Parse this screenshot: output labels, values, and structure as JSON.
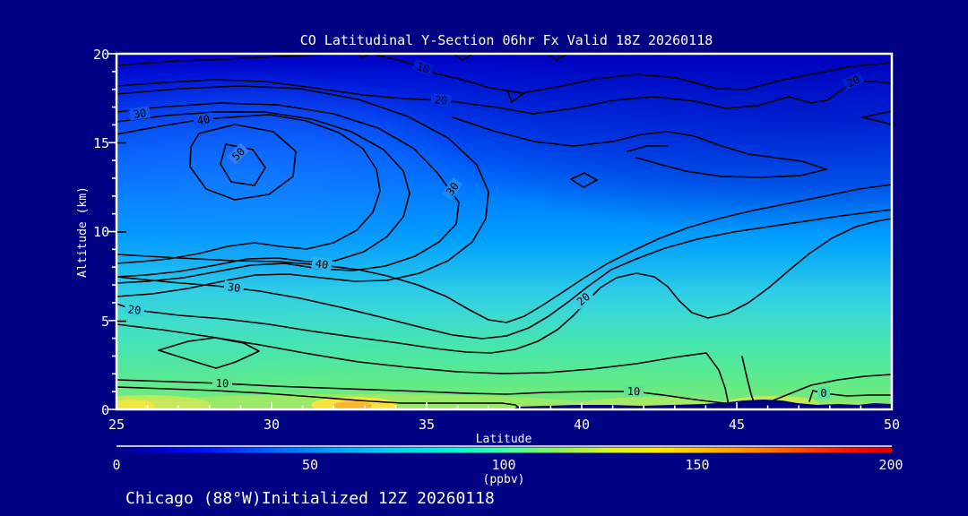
{
  "header": {
    "title": "CO Latitudinal Y-Section 06hr  Fx Valid 18Z 20260118"
  },
  "footer": {
    "caption": "Chicago (88°W)Initialized 12Z 20260118"
  },
  "colors": {
    "background": "#000082",
    "frame": "#ffffff",
    "contour_line": "#000000",
    "text": "#fdfdec",
    "field_top_blue": "#0000c4",
    "field_bottom_green": "#7de878",
    "surface_yellow": "#ffe23c",
    "surface_orange": "#ffb02e"
  },
  "chart_data": {
    "type": "heatmap",
    "subtype": "filled-contour latitude-height cross section with overlaid line contours",
    "title": "CO Latitudinal Y-Section 06hr  Fx Valid 18Z 20260118",
    "xlabel": "Latitude",
    "ylabel": "Altitude (km)",
    "x_range": [
      25,
      50
    ],
    "y_range_km": [
      0,
      20
    ],
    "x_ticks": [
      "25",
      "30",
      "35",
      "40",
      "45",
      "50"
    ],
    "y_ticks": [
      "20",
      "15",
      "10",
      "5",
      "0"
    ],
    "grid": false,
    "fill_field_ppbv": {
      "comment": "CO colour fill, estimated from colorbar at lat/alt grid",
      "lats": [
        25,
        30,
        35,
        40,
        45,
        50
      ],
      "alts_km": [
        20,
        15,
        10,
        5,
        0
      ],
      "values": [
        [
          25,
          22,
          15,
          10,
          8,
          8
        ],
        [
          45,
          40,
          30,
          18,
          15,
          12
        ],
        [
          55,
          58,
          48,
          35,
          30,
          28
        ],
        [
          70,
          72,
          65,
          60,
          62,
          58
        ],
        [
          88,
          108,
          92,
          85,
          95,
          78
        ]
      ]
    },
    "contour_line_levels_labeled": [
      0,
      10,
      20,
      30,
      40,
      50
    ],
    "contour_labels": [
      {
        "text": "10",
        "lat": 34.9,
        "alt_km": 19.2
      },
      {
        "text": "20",
        "lat": 35.5,
        "alt_km": 17.4
      },
      {
        "text": "20",
        "lat": 48.8,
        "alt_km": 18.4
      },
      {
        "text": "30",
        "lat": 25.8,
        "alt_km": 16.6
      },
      {
        "text": "40",
        "lat": 27.8,
        "alt_km": 16.3
      },
      {
        "text": "50",
        "lat": 29.0,
        "alt_km": 14.3
      },
      {
        "text": "30",
        "lat": 35.9,
        "alt_km": 12.4
      },
      {
        "text": "40",
        "lat": 31.6,
        "alt_km": 8.2
      },
      {
        "text": "30",
        "lat": 28.8,
        "alt_km": 6.9
      },
      {
        "text": "20",
        "lat": 25.6,
        "alt_km": 5.5
      },
      {
        "text": "20",
        "lat": 40.1,
        "alt_km": 6.2
      },
      {
        "text": "10",
        "lat": 28.4,
        "alt_km": 1.5
      },
      {
        "text": "10",
        "lat": 41.7,
        "alt_km": 1.0
      },
      {
        "text": "0",
        "lat": 47.8,
        "alt_km": 0.9
      }
    ],
    "colorbar": {
      "min": 0,
      "max": 200,
      "ticks": [
        "0",
        "50",
        "100",
        "150",
        "200"
      ],
      "unit_label": "(ppbv)",
      "gradient": [
        "#000086",
        "#0000d8",
        "#0018ff",
        "#0064ff",
        "#00a2ff",
        "#00d4f0",
        "#0cf4d0",
        "#3cffa8",
        "#8cf25e",
        "#d8f22e",
        "#fce800",
        "#ffb400",
        "#ff7800",
        "#ff3800",
        "#f00800",
        "#d80000"
      ]
    },
    "legend_position": "bottom"
  },
  "labels": {
    "c0": "10",
    "c1": "20",
    "c2": "20",
    "c3": "30",
    "c4": "40",
    "c5": "50",
    "c6": "30",
    "c7": "40",
    "c8": "30",
    "c9": "20",
    "c10": "20",
    "c11": "10",
    "c12": "10",
    "c13": "0",
    "xt0": "25",
    "xt1": "30",
    "xt2": "35",
    "xt3": "40",
    "xt4": "45",
    "xt5": "50",
    "yt0": "20",
    "yt1": "15",
    "yt2": "10",
    "yt3": "5",
    "yt4": "0",
    "cb0": "0",
    "cb1": "50",
    "cb2": "100",
    "cb3": "150",
    "cb4": "200",
    "xlabel": "Latitude",
    "ylabel": "Altitude (km)",
    "ppbv": "(ppbv)"
  }
}
